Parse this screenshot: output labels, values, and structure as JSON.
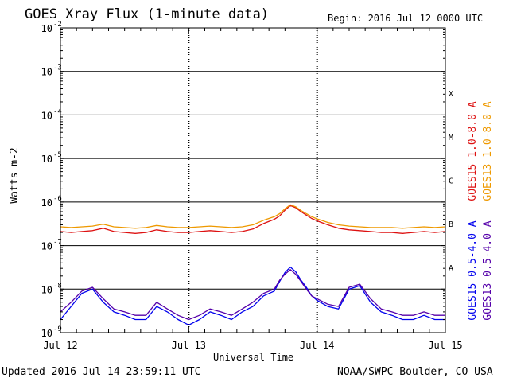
{
  "header": {
    "title": "GOES Xray Flux (1-minute data)",
    "begin": "Begin:  2016 Jul 12 0000 UTC"
  },
  "footer": {
    "updated": "Updated 2016 Jul 14 23:59:11 UTC",
    "credit": "NOAA/SWPC Boulder, CO USA"
  },
  "chart_data": {
    "type": "line",
    "title": "GOES Xray Flux (1-minute data)",
    "xlabel": "Universal Time",
    "ylabel": "Watts m-2",
    "yscale": "log",
    "ylim": [
      1e-09,
      0.01
    ],
    "xlim": [
      0,
      72
    ],
    "x_unit": "hours since 2016 Jul 12 0000 UTC",
    "x_ticks": [
      {
        "x": 0,
        "label": "Jul 12"
      },
      {
        "x": 24,
        "label": "Jul 13"
      },
      {
        "x": 48,
        "label": "Jul 14"
      },
      {
        "x": 72,
        "label": "Jul 15"
      }
    ],
    "y_ticks": [
      {
        "exp": -9,
        "label": "10",
        "sup": "-9"
      },
      {
        "exp": -8,
        "label": "10",
        "sup": "-8"
      },
      {
        "exp": -7,
        "label": "10",
        "sup": "-7"
      },
      {
        "exp": -6,
        "label": "10",
        "sup": "-6"
      },
      {
        "exp": -5,
        "label": "10",
        "sup": "-5"
      },
      {
        "exp": -4,
        "label": "10",
        "sup": "-4"
      },
      {
        "exp": -3,
        "label": "10",
        "sup": "-3"
      },
      {
        "exp": -2,
        "label": "10",
        "sup": "-2"
      }
    ],
    "flare_classes": [
      {
        "label": "A",
        "exp": -8
      },
      {
        "label": "B",
        "exp": -7
      },
      {
        "label": "C",
        "exp": -6
      },
      {
        "label": "M",
        "exp": -5
      },
      {
        "label": "X",
        "exp": -4
      }
    ],
    "grid": true,
    "legend_position": "right, vertical",
    "series": [
      {
        "name": "GOES15 1.0-8.0 A",
        "color": "#dd1111",
        "x": [
          0,
          2,
          4,
          6,
          8,
          10,
          12,
          14,
          16,
          18,
          20,
          22,
          24,
          26,
          28,
          30,
          32,
          34,
          36,
          38,
          40,
          41,
          42,
          43,
          44,
          45,
          46,
          47,
          48,
          50,
          52,
          54,
          56,
          58,
          60,
          62,
          64,
          66,
          68,
          70,
          72
        ],
        "values": [
          2.1e-07,
          2e-07,
          2.1e-07,
          2.2e-07,
          2.5e-07,
          2.1e-07,
          2e-07,
          1.9e-07,
          2e-07,
          2.3e-07,
          2.1e-07,
          2e-07,
          2e-07,
          2.1e-07,
          2.2e-07,
          2.1e-07,
          2e-07,
          2.1e-07,
          2.4e-07,
          3.2e-07,
          4e-07,
          4.8e-07,
          6.5e-07,
          8.3e-07,
          7.4e-07,
          6e-07,
          5e-07,
          4.2e-07,
          3.7e-07,
          3e-07,
          2.5e-07,
          2.3e-07,
          2.2e-07,
          2.1e-07,
          2e-07,
          2e-07,
          1.9e-07,
          2e-07,
          2.1e-07,
          2e-07,
          2.1e-07
        ]
      },
      {
        "name": "GOES13 1.0-8.0 A",
        "color": "#ee9900",
        "x": [
          0,
          2,
          4,
          6,
          8,
          10,
          12,
          14,
          16,
          18,
          20,
          22,
          24,
          26,
          28,
          30,
          32,
          34,
          36,
          38,
          40,
          41,
          42,
          43,
          44,
          45,
          46,
          47,
          48,
          50,
          52,
          54,
          56,
          58,
          60,
          62,
          64,
          66,
          68,
          70,
          72
        ],
        "values": [
          2.7e-07,
          2.6e-07,
          2.7e-07,
          2.8e-07,
          3.1e-07,
          2.7e-07,
          2.6e-07,
          2.5e-07,
          2.6e-07,
          2.9e-07,
          2.7e-07,
          2.6e-07,
          2.6e-07,
          2.7e-07,
          2.8e-07,
          2.7e-07,
          2.6e-07,
          2.7e-07,
          3e-07,
          3.8e-07,
          4.6e-07,
          5.4e-07,
          7e-07,
          8.6e-07,
          7.8e-07,
          6.4e-07,
          5.4e-07,
          4.6e-07,
          4.1e-07,
          3.4e-07,
          3e-07,
          2.8e-07,
          2.7e-07,
          2.6e-07,
          2.6e-07,
          2.6e-07,
          2.5e-07,
          2.6e-07,
          2.7e-07,
          2.6e-07,
          2.7e-07
        ]
      },
      {
        "name": "GOES15 0.5-4.0 A",
        "color": "#0000ee",
        "x": [
          0,
          2,
          4,
          6,
          8,
          10,
          12,
          14,
          16,
          18,
          20,
          22,
          24,
          26,
          28,
          30,
          32,
          34,
          36,
          38,
          40,
          41,
          42,
          43,
          44,
          45,
          46,
          47,
          48,
          50,
          52,
          54,
          56,
          58,
          60,
          62,
          64,
          66,
          68,
          70,
          72
        ],
        "values": [
          2e-09,
          4e-09,
          8e-09,
          1e-08,
          5e-09,
          3e-09,
          2.5e-09,
          2e-09,
          2e-09,
          4e-09,
          3e-09,
          2e-09,
          1.5e-09,
          2e-09,
          3e-09,
          2.5e-09,
          2e-09,
          3e-09,
          4e-09,
          7e-09,
          9e-09,
          1.5e-08,
          2.4e-08,
          3.2e-08,
          2.5e-08,
          1.6e-08,
          1.1e-08,
          7e-09,
          5.5e-09,
          4e-09,
          3.5e-09,
          1e-08,
          1.2e-08,
          5e-09,
          3e-09,
          2.5e-09,
          2e-09,
          2e-09,
          2.5e-09,
          2e-09,
          2e-09
        ]
      },
      {
        "name": "GOES13 0.5-4.0 A",
        "color": "#5500aa",
        "x": [
          0,
          2,
          4,
          6,
          8,
          10,
          12,
          14,
          16,
          18,
          20,
          22,
          24,
          26,
          28,
          30,
          32,
          34,
          36,
          38,
          40,
          41,
          42,
          43,
          44,
          45,
          46,
          47,
          48,
          50,
          52,
          54,
          56,
          58,
          60,
          62,
          64,
          66,
          68,
          70,
          72
        ],
        "values": [
          3e-09,
          5e-09,
          9e-09,
          1.1e-08,
          6e-09,
          3.5e-09,
          3e-09,
          2.5e-09,
          2.5e-09,
          5e-09,
          3.5e-09,
          2.5e-09,
          2e-09,
          2.5e-09,
          3.5e-09,
          3e-09,
          2.5e-09,
          3.5e-09,
          5e-09,
          8e-09,
          1e-08,
          1.6e-08,
          2.2e-08,
          2.8e-08,
          2.2e-08,
          1.5e-08,
          1e-08,
          7e-09,
          6e-09,
          4.5e-09,
          4e-09,
          1.1e-08,
          1.3e-08,
          6e-09,
          3.5e-09,
          3e-09,
          2.5e-09,
          2.5e-09,
          3e-09,
          2.5e-09,
          2.5e-09
        ]
      }
    ]
  }
}
